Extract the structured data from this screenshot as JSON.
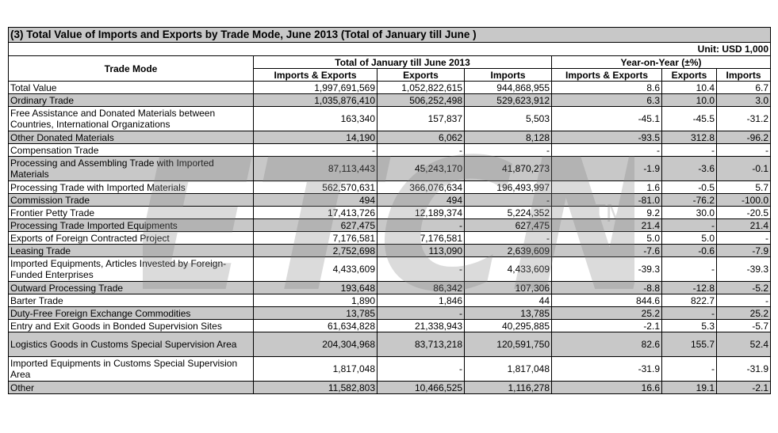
{
  "title": "(3) Total Value of Imports and Exports by Trade Mode, June 2013 (Total of January till June )",
  "unit": "Unit: USD 1,000",
  "headers": {
    "trade_mode": "Trade Mode",
    "total_group": "Total of January till June 2013",
    "yoy_group": "Year-on-Year (±%)",
    "imports_exports": "Imports & Exports",
    "exports": "Exports",
    "imports": "Imports"
  },
  "watermark": {
    "text": "ETCN",
    "tm": "TM"
  },
  "rows": [
    {
      "mode": "Total Value",
      "ie": "1,997,691,569",
      "ex": "1,052,822,615",
      "im": "944,868,955",
      "yie": "8.6",
      "yex": "10.4",
      "yim": "6.7",
      "shade": false,
      "tall": false
    },
    {
      "mode": "Ordinary Trade",
      "ie": "1,035,876,410",
      "ex": "506,252,498",
      "im": "529,623,912",
      "yie": "6.3",
      "yex": "10.0",
      "yim": "3.0",
      "shade": true,
      "tall": false
    },
    {
      "mode": "Free Assistance and Donated Materials between Countries, International Organizations",
      "ie": "163,340",
      "ex": "157,837",
      "im": "5,503",
      "yie": "-45.1",
      "yex": "-45.5",
      "yim": "-31.2",
      "shade": false,
      "tall": true
    },
    {
      "mode": "Other Donated Materials",
      "ie": "14,190",
      "ex": "6,062",
      "im": "8,128",
      "yie": "-93.5",
      "yex": "312.8",
      "yim": "-96.2",
      "shade": true,
      "tall": false
    },
    {
      "mode": "Compensation Trade",
      "ie": "-",
      "ex": "-",
      "im": "-",
      "yie": "-",
      "yex": "-",
      "yim": "-",
      "shade": false,
      "tall": false
    },
    {
      "mode": "Processing and Assembling Trade with Imported Materials",
      "ie": "87,113,443",
      "ex": "45,243,170",
      "im": "41,870,273",
      "yie": "-1.9",
      "yex": "-3.6",
      "yim": "-0.1",
      "shade": true,
      "tall": true
    },
    {
      "mode": "Processing Trade with Imported Materials",
      "ie": "562,570,631",
      "ex": "366,076,634",
      "im": "196,493,997",
      "yie": "1.6",
      "yex": "-0.5",
      "yim": "5.7",
      "shade": false,
      "tall": false
    },
    {
      "mode": "Commission Trade",
      "ie": "494",
      "ex": "494",
      "im": "-",
      "yie": "-81.0",
      "yex": "-76.2",
      "yim": "-100.0",
      "shade": true,
      "tall": false
    },
    {
      "mode": "Frontier Petty Trade",
      "ie": "17,413,726",
      "ex": "12,189,374",
      "im": "5,224,352",
      "yie": "9.2",
      "yex": "30.0",
      "yim": "-20.5",
      "shade": false,
      "tall": false
    },
    {
      "mode": "Processing Trade Imported Equipments",
      "ie": "627,475",
      "ex": "-",
      "im": "627,475",
      "yie": "21.4",
      "yex": "-",
      "yim": "21.4",
      "shade": true,
      "tall": false
    },
    {
      "mode": "Exports of Foreign Contracted Project",
      "ie": "7,176,581",
      "ex": "7,176,581",
      "im": "-",
      "yie": "5.0",
      "yex": "5.0",
      "yim": "-",
      "shade": false,
      "tall": false
    },
    {
      "mode": "Leasing Trade",
      "ie": "2,752,698",
      "ex": "113,090",
      "im": "2,639,609",
      "yie": "-7.6",
      "yex": "-0.6",
      "yim": "-7.9",
      "shade": true,
      "tall": false
    },
    {
      "mode": "Imported Equipments, Articles Invested by Foreign-Funded Enterprises",
      "ie": "4,433,609",
      "ex": "-",
      "im": "4,433,609",
      "yie": "-39.3",
      "yex": "-",
      "yim": "-39.3",
      "shade": false,
      "tall": true
    },
    {
      "mode": "Outward Processing Trade",
      "ie": "193,648",
      "ex": "86,342",
      "im": "107,306",
      "yie": "-8.8",
      "yex": "-12.8",
      "yim": "-5.2",
      "shade": true,
      "tall": false
    },
    {
      "mode": "Barter Trade",
      "ie": "1,890",
      "ex": "1,846",
      "im": "44",
      "yie": "844.6",
      "yex": "822.7",
      "yim": "-",
      "shade": false,
      "tall": false
    },
    {
      "mode": "Duty-Free Foreign Exchange Commodities",
      "ie": "13,785",
      "ex": "-",
      "im": "13,785",
      "yie": "25.2",
      "yex": "-",
      "yim": "25.2",
      "shade": true,
      "tall": false
    },
    {
      "mode": "Entry and Exit Goods in Bonded Supervision Sites",
      "ie": "61,634,828",
      "ex": "21,338,943",
      "im": "40,295,885",
      "yie": "-2.1",
      "yex": "5.3",
      "yim": "-5.7",
      "shade": false,
      "tall": false
    },
    {
      "mode": "Logistics Goods in Customs Special Supervision Area",
      "ie": "204,304,968",
      "ex": "83,713,218",
      "im": "120,591,750",
      "yie": "82.6",
      "yex": "155.7",
      "yim": "52.4",
      "shade": true,
      "tall": true
    },
    {
      "mode": "Imported Equipments in Customs Special Supervision Area",
      "ie": "1,817,048",
      "ex": "-",
      "im": "1,817,048",
      "yie": "-31.9",
      "yex": "-",
      "yim": "-31.9",
      "shade": false,
      "tall": true
    },
    {
      "mode": "Other",
      "ie": "11,582,803",
      "ex": "10,466,525",
      "im": "1,116,278",
      "yie": "16.6",
      "yex": "19.1",
      "yim": "-2.1",
      "shade": true,
      "tall": false
    }
  ]
}
